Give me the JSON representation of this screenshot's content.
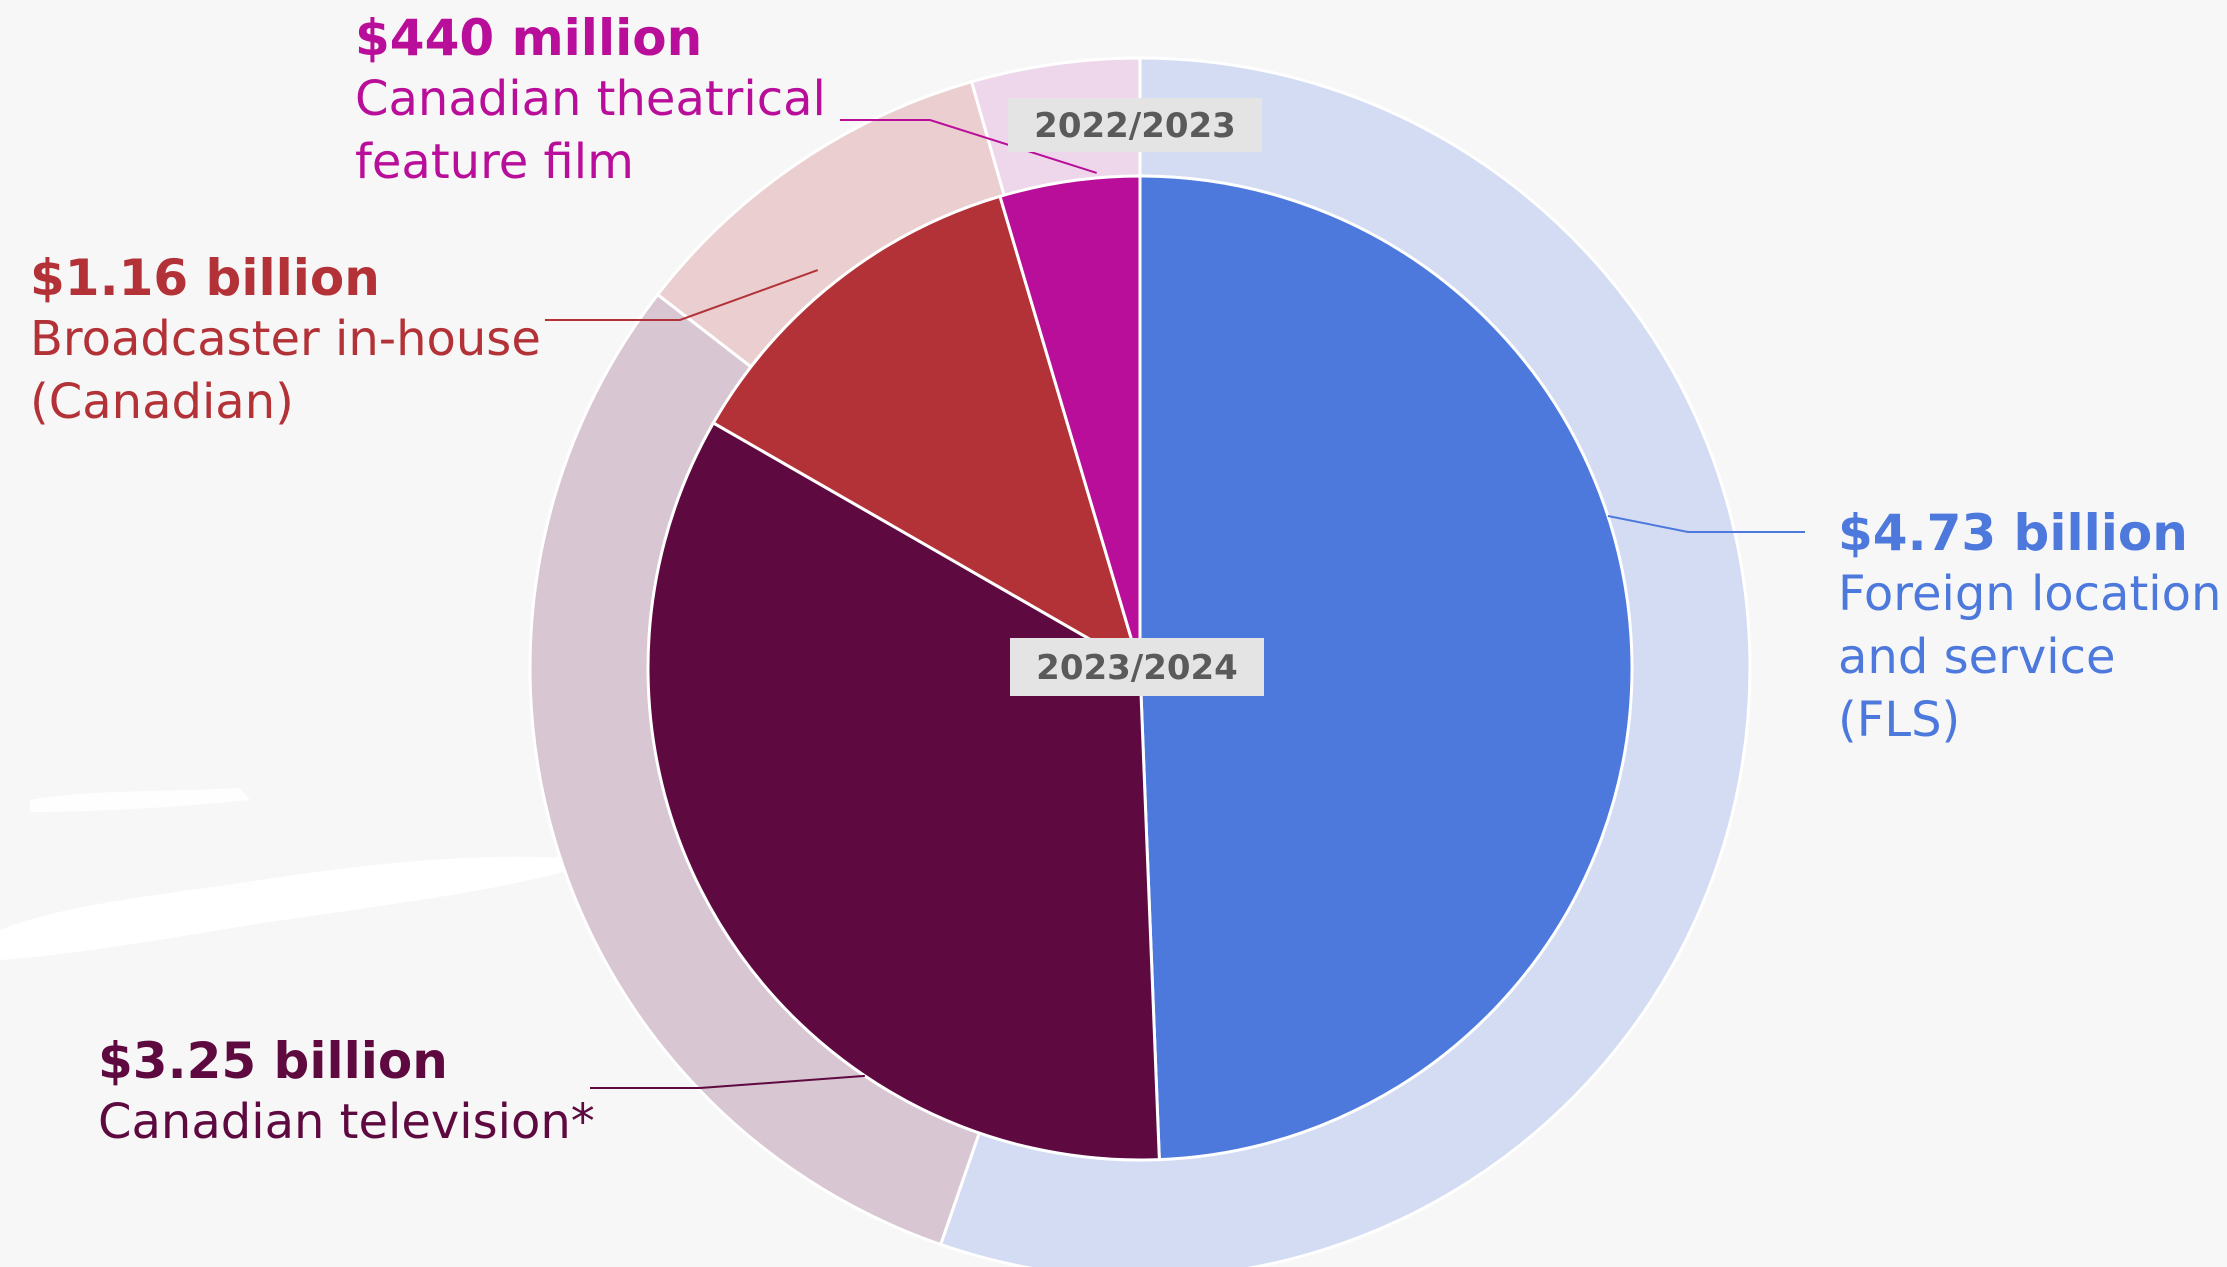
{
  "chart_data": {
    "type": "pie",
    "inner_ring": {
      "label": "2023/2024",
      "slices": [
        {
          "name": "Foreign location and service (FLS)",
          "amount": "$4.73 billion",
          "value": 4.73,
          "color": "#4d79dd"
        },
        {
          "name": "Canadian television*",
          "amount": "$3.25 billion",
          "value": 3.25,
          "color": "#5e0a40"
        },
        {
          "name": "Broadcaster in-house (Canadian)",
          "amount": "$1.16 billion",
          "value": 1.16,
          "color": "#b33238"
        },
        {
          "name": "Canadian theatrical feature film",
          "amount": "$440 million",
          "value": 0.44,
          "color": "#b80e9a"
        }
      ]
    },
    "outer_ring": {
      "label": "2022/2023",
      "slices": [
        {
          "name": "Foreign location and service (FLS)",
          "value": 6.21,
          "color": "#d3dcf3"
        },
        {
          "name": "Canadian television*",
          "value": 3.39,
          "color": "#d8c6d2"
        },
        {
          "name": "Broadcaster in-house (Canadian)",
          "value": 1.13,
          "color": "#ebcfd0"
        },
        {
          "name": "Canadian theatrical feature film",
          "value": 0.5,
          "color": "#efd7eb"
        }
      ]
    }
  },
  "labels": {
    "fls": {
      "amount": "$4.73 billion",
      "line1": "Foreign location",
      "line2": "and service (FLS)"
    },
    "tv": {
      "amount": "$3.25 billion",
      "line1": "Canadian television*"
    },
    "inhouse": {
      "amount": "$1.16 billion",
      "line1": "Broadcaster in-house",
      "line2": "(Canadian)"
    },
    "film": {
      "amount": "$440 million",
      "line1": "Canadian theatrical",
      "line2": "feature film"
    }
  },
  "colors": {
    "background": "#f7f7f7",
    "fls_text": "#4d79dd",
    "tv_text": "#5e0a40",
    "inhouse_text": "#b33238",
    "film_text": "#b80e9a",
    "tag_bg": "#e4e4e4"
  }
}
